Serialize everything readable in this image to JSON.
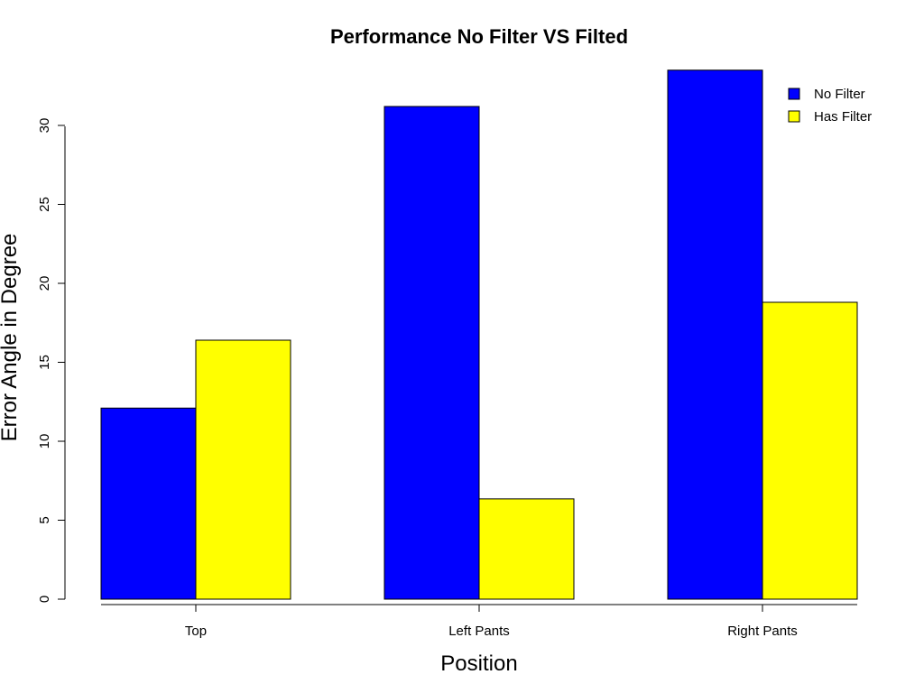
{
  "chart_data": {
    "type": "bar",
    "title": "Performance No Filter VS Filted",
    "xlabel": "Position",
    "ylabel": "Error Angle in Degree",
    "categories": [
      "Top",
      "Left Pants",
      "Right Pants"
    ],
    "series": [
      {
        "name": "No Filter",
        "values": [
          12.1,
          31.2,
          33.5
        ],
        "color": "#0000ff"
      },
      {
        "name": "Has Filter",
        "values": [
          16.4,
          6.35,
          18.8
        ],
        "color": "#ffff00"
      }
    ],
    "yticks": [
      0,
      5,
      10,
      15,
      20,
      25,
      30
    ],
    "ylim": [
      0,
      33.5
    ],
    "grid": false,
    "legend_position": "top-right"
  }
}
